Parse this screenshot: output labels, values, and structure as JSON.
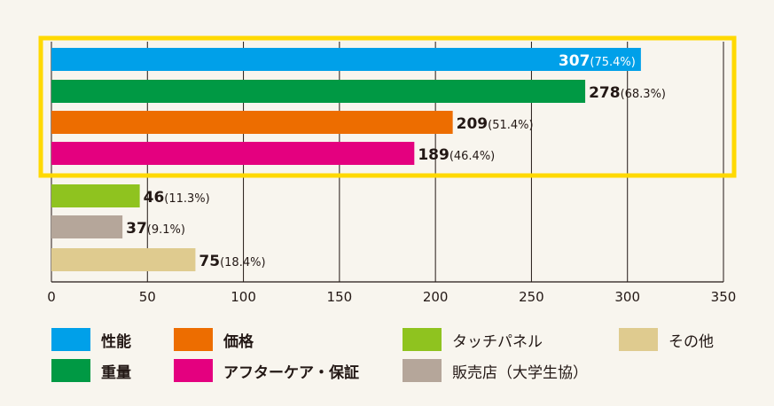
{
  "chart_data": {
    "type": "bar",
    "orientation": "horizontal",
    "categories": [
      "性能",
      "重量",
      "価格",
      "アフターケア・保証",
      "タッチパネル",
      "販売店（大学生協）",
      "その他"
    ],
    "values": [
      307,
      278,
      209,
      189,
      46,
      37,
      75
    ],
    "percent_labels": [
      "(75.4%)",
      "(68.3%)",
      "(51.4%)",
      "(46.4%)",
      "(11.3%)",
      "(9.1%)",
      "(18.4%)"
    ],
    "colors": [
      "#00a0e9",
      "#009944",
      "#ed6d00",
      "#e4007f",
      "#8fc31f",
      "#b5a69a",
      "#dfcb8f"
    ],
    "highlighted": [
      0,
      1,
      2,
      3
    ],
    "highlight_color": "#ffd900",
    "xlim": [
      0,
      350
    ],
    "xticks": [
      0,
      50,
      100,
      150,
      200,
      250,
      300,
      350
    ],
    "grid": true,
    "legend_position": "bottom",
    "title": "",
    "xlabel": "",
    "ylabel": ""
  }
}
